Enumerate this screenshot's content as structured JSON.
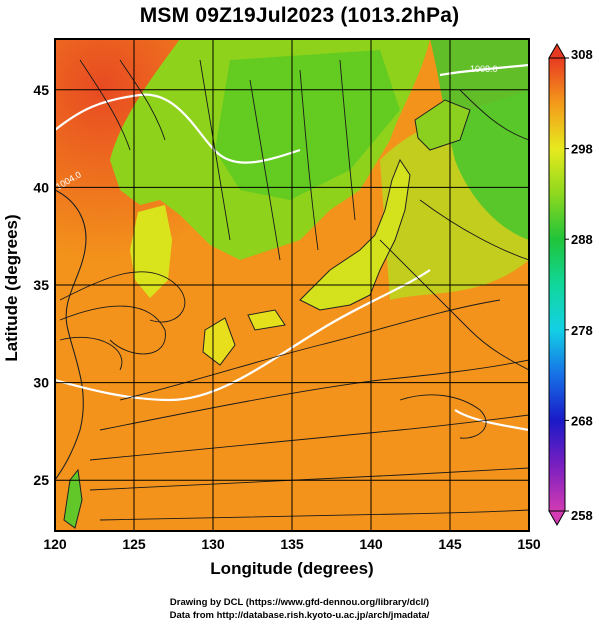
{
  "title": "MSM 09Z19Jul2023 (1013.2hPa)",
  "xlabel": "Longitude (degrees)",
  "ylabel": "Latitude  (degrees)",
  "credits": [
    "Drawing by DCL (https://www.gfd-dennou.org/library/dcl/)",
    "Data from http://database.rish.kyoto-u.ac.jp/arch/jmadata/"
  ],
  "chart_data": {
    "type": "heatmap",
    "title": "MSM 09Z19Jul2023 (1013.2hPa)",
    "xlabel": "Longitude (degrees)",
    "ylabel": "Latitude  (degrees)",
    "xlim": [
      120,
      150
    ],
    "ylim": [
      22.4,
      47.6
    ],
    "x_ticks": [
      120,
      125,
      130,
      135,
      140,
      145,
      150
    ],
    "y_ticks": [
      25,
      30,
      35,
      40,
      45
    ],
    "grid": true,
    "colorbar": {
      "min": 258,
      "max": 308,
      "ticks": [
        258,
        268,
        278,
        288,
        298,
        308
      ],
      "stops": [
        {
          "v": 258,
          "color": "#d23bb3"
        },
        {
          "v": 263,
          "color": "#7a1fc0"
        },
        {
          "v": 268,
          "color": "#1a1ac8"
        },
        {
          "v": 273,
          "color": "#1670e6"
        },
        {
          "v": 278,
          "color": "#14d0e6"
        },
        {
          "v": 283,
          "color": "#10d79a"
        },
        {
          "v": 288,
          "color": "#20c43a"
        },
        {
          "v": 293,
          "color": "#8ed81e"
        },
        {
          "v": 298,
          "color": "#e7ea1e"
        },
        {
          "v": 303,
          "color": "#f39a1a"
        },
        {
          "v": 308,
          "color": "#e83a22"
        }
      ]
    },
    "contour_labels": [
      "1008.0",
      "1004.0"
    ],
    "fields": {
      "background_color": "#f4941c",
      "land_color": "#7bc81d"
    }
  }
}
